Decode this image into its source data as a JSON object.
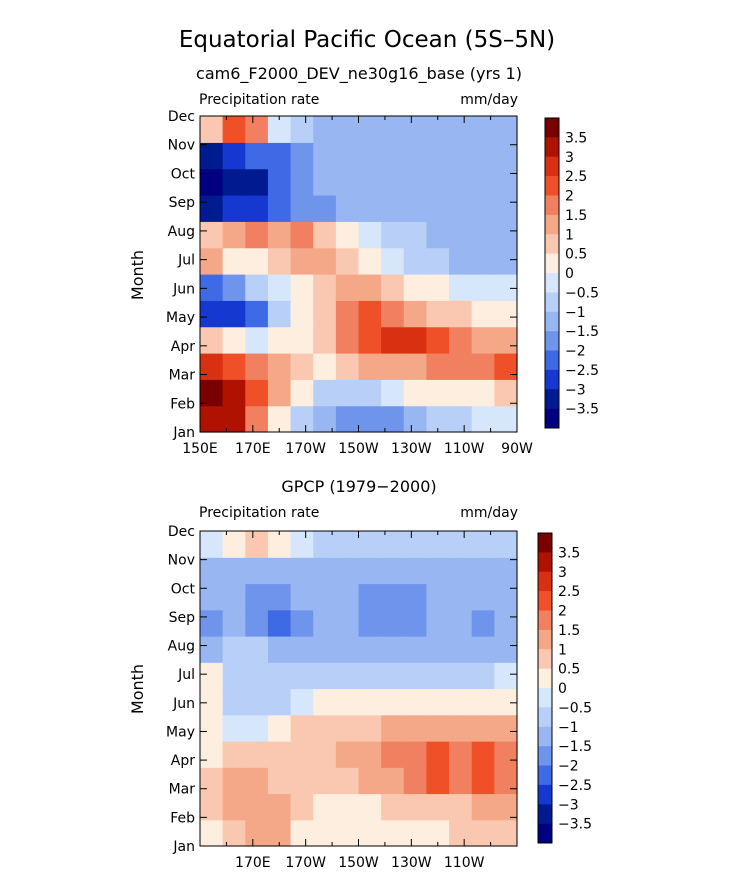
{
  "page": {
    "title": "Equatorial Pacific Ocean (5S–5N)"
  },
  "chart_data": [
    {
      "type": "heatmap",
      "subtitle": "cam6_F2000_DEV_ne30g16_base (yrs 1)",
      "left_label": "Precipitation rate",
      "right_label": "mm/day",
      "ylabel": "Month",
      "y_categories": [
        "Jan",
        "Feb",
        "Mar",
        "Apr",
        "May",
        "Jun",
        "Jul",
        "Aug",
        "Sep",
        "Oct",
        "Nov",
        "Dec"
      ],
      "x_ticks": [
        "150E",
        "170E",
        "170W",
        "150W",
        "130W",
        "110W",
        "90W"
      ],
      "xlim": [
        150,
        270
      ],
      "colorbar": {
        "levels": [
          "3.5",
          "3",
          "2.5",
          "2",
          "1.5",
          "1",
          "0.5",
          "0",
          "−0.5",
          "−1",
          "−1.5",
          "−2",
          "−2.5",
          "−3",
          "−3.5"
        ],
        "colors": [
          "#7a0000",
          "#b01200",
          "#d83010",
          "#f05028",
          "#f08060",
          "#f4a888",
          "#fac8b0",
          "#fdeee0",
          "#d6e6fb",
          "#b8d0f8",
          "#98b6f2",
          "#6f94ec",
          "#3f6ae6",
          "#1538d0",
          "#001a90",
          "#000080"
        ]
      },
      "values_mm_per_day": [
        [
          3.5,
          3.5,
          2.0,
          0.5,
          -0.5,
          -1.0,
          -1.5,
          -1.5,
          -1.5,
          -1.0,
          -0.5,
          -0.5,
          0.0,
          0.0
        ],
        [
          4.0,
          3.5,
          2.5,
          1.5,
          0.5,
          -0.5,
          -0.5,
          -0.5,
          0.0,
          0.5,
          0.5,
          0.5,
          0.5,
          1.0
        ],
        [
          3.0,
          2.5,
          2.0,
          1.5,
          1.0,
          0.5,
          1.0,
          1.5,
          1.5,
          1.5,
          2.0,
          2.0,
          2.0,
          2.5
        ],
        [
          1.0,
          0.5,
          0.0,
          0.5,
          0.5,
          1.0,
          2.0,
          2.5,
          3.0,
          3.0,
          2.5,
          2.0,
          1.5,
          1.5
        ],
        [
          -2.5,
          -2.5,
          -2.0,
          -0.5,
          0.5,
          1.0,
          2.0,
          2.5,
          2.0,
          1.5,
          1.0,
          1.0,
          0.5,
          0.5
        ],
        [
          -2.0,
          -1.5,
          -0.5,
          0.0,
          0.5,
          1.0,
          1.5,
          1.5,
          1.0,
          0.5,
          0.5,
          0.0,
          0.0,
          0.0
        ],
        [
          1.5,
          0.5,
          0.5,
          1.0,
          1.5,
          1.5,
          1.0,
          0.5,
          0.0,
          -0.5,
          -0.5,
          -1.0,
          -1.0,
          -1.0
        ],
        [
          1.0,
          1.5,
          2.0,
          1.5,
          2.0,
          1.0,
          0.5,
          0.0,
          -0.5,
          -0.5,
          -1.0,
          -1.0,
          -1.0,
          -1.0
        ],
        [
          -3.0,
          -2.5,
          -2.5,
          -2.0,
          -1.5,
          -1.5,
          -1.0,
          -1.0,
          -1.0,
          -1.0,
          -1.0,
          -1.0,
          -1.0,
          -1.0
        ],
        [
          -3.5,
          -3.0,
          -3.0,
          -2.0,
          -1.5,
          -1.0,
          -1.0,
          -1.0,
          -1.0,
          -1.0,
          -1.0,
          -1.0,
          -1.0,
          -1.0
        ],
        [
          -3.0,
          -2.5,
          -2.0,
          -2.0,
          -1.5,
          -1.0,
          -1.0,
          -1.0,
          -1.0,
          -1.0,
          -1.0,
          -1.0,
          -1.0,
          -1.0
        ],
        [
          1.0,
          2.5,
          2.0,
          0.0,
          -0.5,
          -1.0,
          -1.0,
          -1.0,
          -1.0,
          -1.0,
          -1.0,
          -1.0,
          -1.0,
          -1.0
        ]
      ]
    },
    {
      "type": "heatmap",
      "subtitle": "GPCP (1979−2000)",
      "left_label": "Precipitation rate",
      "right_label": "mm/day",
      "ylabel": "Month",
      "y_categories": [
        "Jan",
        "Feb",
        "Mar",
        "Apr",
        "May",
        "Jun",
        "Jul",
        "Aug",
        "Sep",
        "Oct",
        "Nov",
        "Dec"
      ],
      "x_ticks": [
        "170E",
        "170W",
        "150W",
        "130W",
        "110W"
      ],
      "xlim": [
        150,
        270
      ],
      "colorbar": {
        "levels": [
          "3.5",
          "3",
          "2.5",
          "2",
          "1.5",
          "1",
          "0.5",
          "0",
          "−0.5",
          "−1",
          "−1.5",
          "−2",
          "−2.5",
          "−3",
          "−3.5"
        ],
        "colors": [
          "#7a0000",
          "#b01200",
          "#d83010",
          "#f05028",
          "#f08060",
          "#f4a888",
          "#fac8b0",
          "#fdeee0",
          "#d6e6fb",
          "#b8d0f8",
          "#98b6f2",
          "#6f94ec",
          "#3f6ae6",
          "#1538d0",
          "#001a90",
          "#000080"
        ]
      },
      "values_mm_per_day": [
        [
          0.5,
          1.0,
          1.5,
          1.5,
          0.5,
          0.5,
          0.5,
          0.5,
          0.5,
          0.5,
          0.5,
          1.0,
          1.0,
          1.0
        ],
        [
          1.0,
          1.5,
          1.5,
          1.5,
          1.0,
          0.5,
          0.5,
          0.5,
          1.0,
          1.0,
          1.0,
          1.0,
          1.5,
          1.5
        ],
        [
          1.0,
          1.5,
          1.5,
          1.0,
          1.0,
          1.0,
          1.0,
          1.5,
          1.5,
          2.0,
          2.5,
          2.0,
          2.5,
          2.0
        ],
        [
          0.5,
          1.0,
          1.0,
          1.0,
          1.0,
          1.0,
          1.5,
          1.5,
          2.0,
          2.0,
          2.5,
          2.0,
          2.5,
          2.0
        ],
        [
          0.5,
          0.0,
          0.0,
          0.5,
          1.0,
          1.0,
          1.0,
          1.0,
          1.5,
          1.5,
          1.5,
          1.5,
          1.5,
          1.5
        ],
        [
          0.5,
          -0.5,
          -0.5,
          -0.5,
          0.0,
          0.5,
          0.5,
          0.5,
          0.5,
          0.5,
          0.5,
          0.5,
          0.5,
          0.5
        ],
        [
          0.5,
          -0.5,
          -0.5,
          -0.5,
          -0.5,
          -0.5,
          -0.5,
          -0.5,
          -0.5,
          -0.5,
          -0.5,
          -0.5,
          -0.5,
          0.0
        ],
        [
          -1.0,
          -0.5,
          -0.5,
          -1.0,
          -1.0,
          -1.0,
          -1.0,
          -1.0,
          -1.0,
          -1.0,
          -1.0,
          -1.0,
          -1.0,
          -1.0
        ],
        [
          -1.5,
          -1.0,
          -1.5,
          -2.0,
          -1.5,
          -1.0,
          -1.0,
          -1.5,
          -1.5,
          -1.5,
          -1.0,
          -1.0,
          -1.5,
          -1.0
        ],
        [
          -1.0,
          -1.0,
          -1.5,
          -1.5,
          -1.0,
          -1.0,
          -1.0,
          -1.5,
          -1.5,
          -1.5,
          -1.0,
          -1.0,
          -1.0,
          -1.0
        ],
        [
          -1.0,
          -1.0,
          -1.0,
          -1.0,
          -1.0,
          -1.0,
          -1.0,
          -1.0,
          -1.0,
          -1.0,
          -1.0,
          -1.0,
          -1.0,
          -1.0
        ],
        [
          0.0,
          0.5,
          1.0,
          0.5,
          0.0,
          -0.5,
          -0.5,
          -0.5,
          -0.5,
          -0.5,
          -0.5,
          -0.5,
          -0.5,
          -0.5
        ]
      ]
    }
  ]
}
